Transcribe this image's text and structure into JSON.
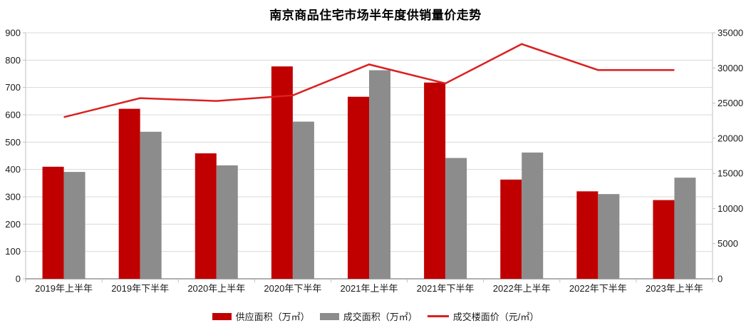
{
  "title": "南京商品住宅市场半年度供销量价走势",
  "chart_data": {
    "type": "combo",
    "title": "南京商品住宅市场半年度供销量价走势",
    "categories": [
      "2019年上半年",
      "2019年下半年",
      "2020年上半年",
      "2020年下半年",
      "2021年上半年",
      "2021年下半年",
      "2022年上半年",
      "2022年下半年",
      "2023年上半年"
    ],
    "series": [
      {
        "name": "供应面积（万㎡）",
        "type": "bar",
        "axis": "left",
        "color": "#C00000",
        "values": [
          410,
          622,
          459,
          777,
          666,
          718,
          363,
          320,
          288
        ]
      },
      {
        "name": "成交面积（万㎡）",
        "type": "bar",
        "axis": "left",
        "color": "#8C8C8C",
        "values": [
          391,
          538,
          415,
          575,
          763,
          442,
          462,
          310,
          370
        ]
      },
      {
        "name": "成交楼面价（元/㎡）",
        "type": "line",
        "axis": "right",
        "color": "#DB2020",
        "values": [
          23000,
          25700,
          25300,
          26100,
          30500,
          27800,
          33400,
          29700,
          29700
        ]
      }
    ],
    "left_axis": {
      "min": 0,
      "max": 900,
      "step": 100,
      "tick_labels": [
        "0",
        "100",
        "200",
        "300",
        "400",
        "500",
        "600",
        "700",
        "800",
        "900"
      ]
    },
    "right_axis": {
      "min": 0,
      "max": 35000,
      "step": 5000,
      "tick_labels": [
        "0",
        "5000",
        "10000",
        "15000",
        "20000",
        "25000",
        "30000",
        "35000"
      ]
    },
    "grid": true,
    "legend_position": "bottom",
    "colors": {
      "grid": "#D9D9D9",
      "axis": "#BFBFBF",
      "x_axis": "#7F7F7F",
      "text": "#1A1A1A",
      "background": "#FFFFFF"
    }
  }
}
